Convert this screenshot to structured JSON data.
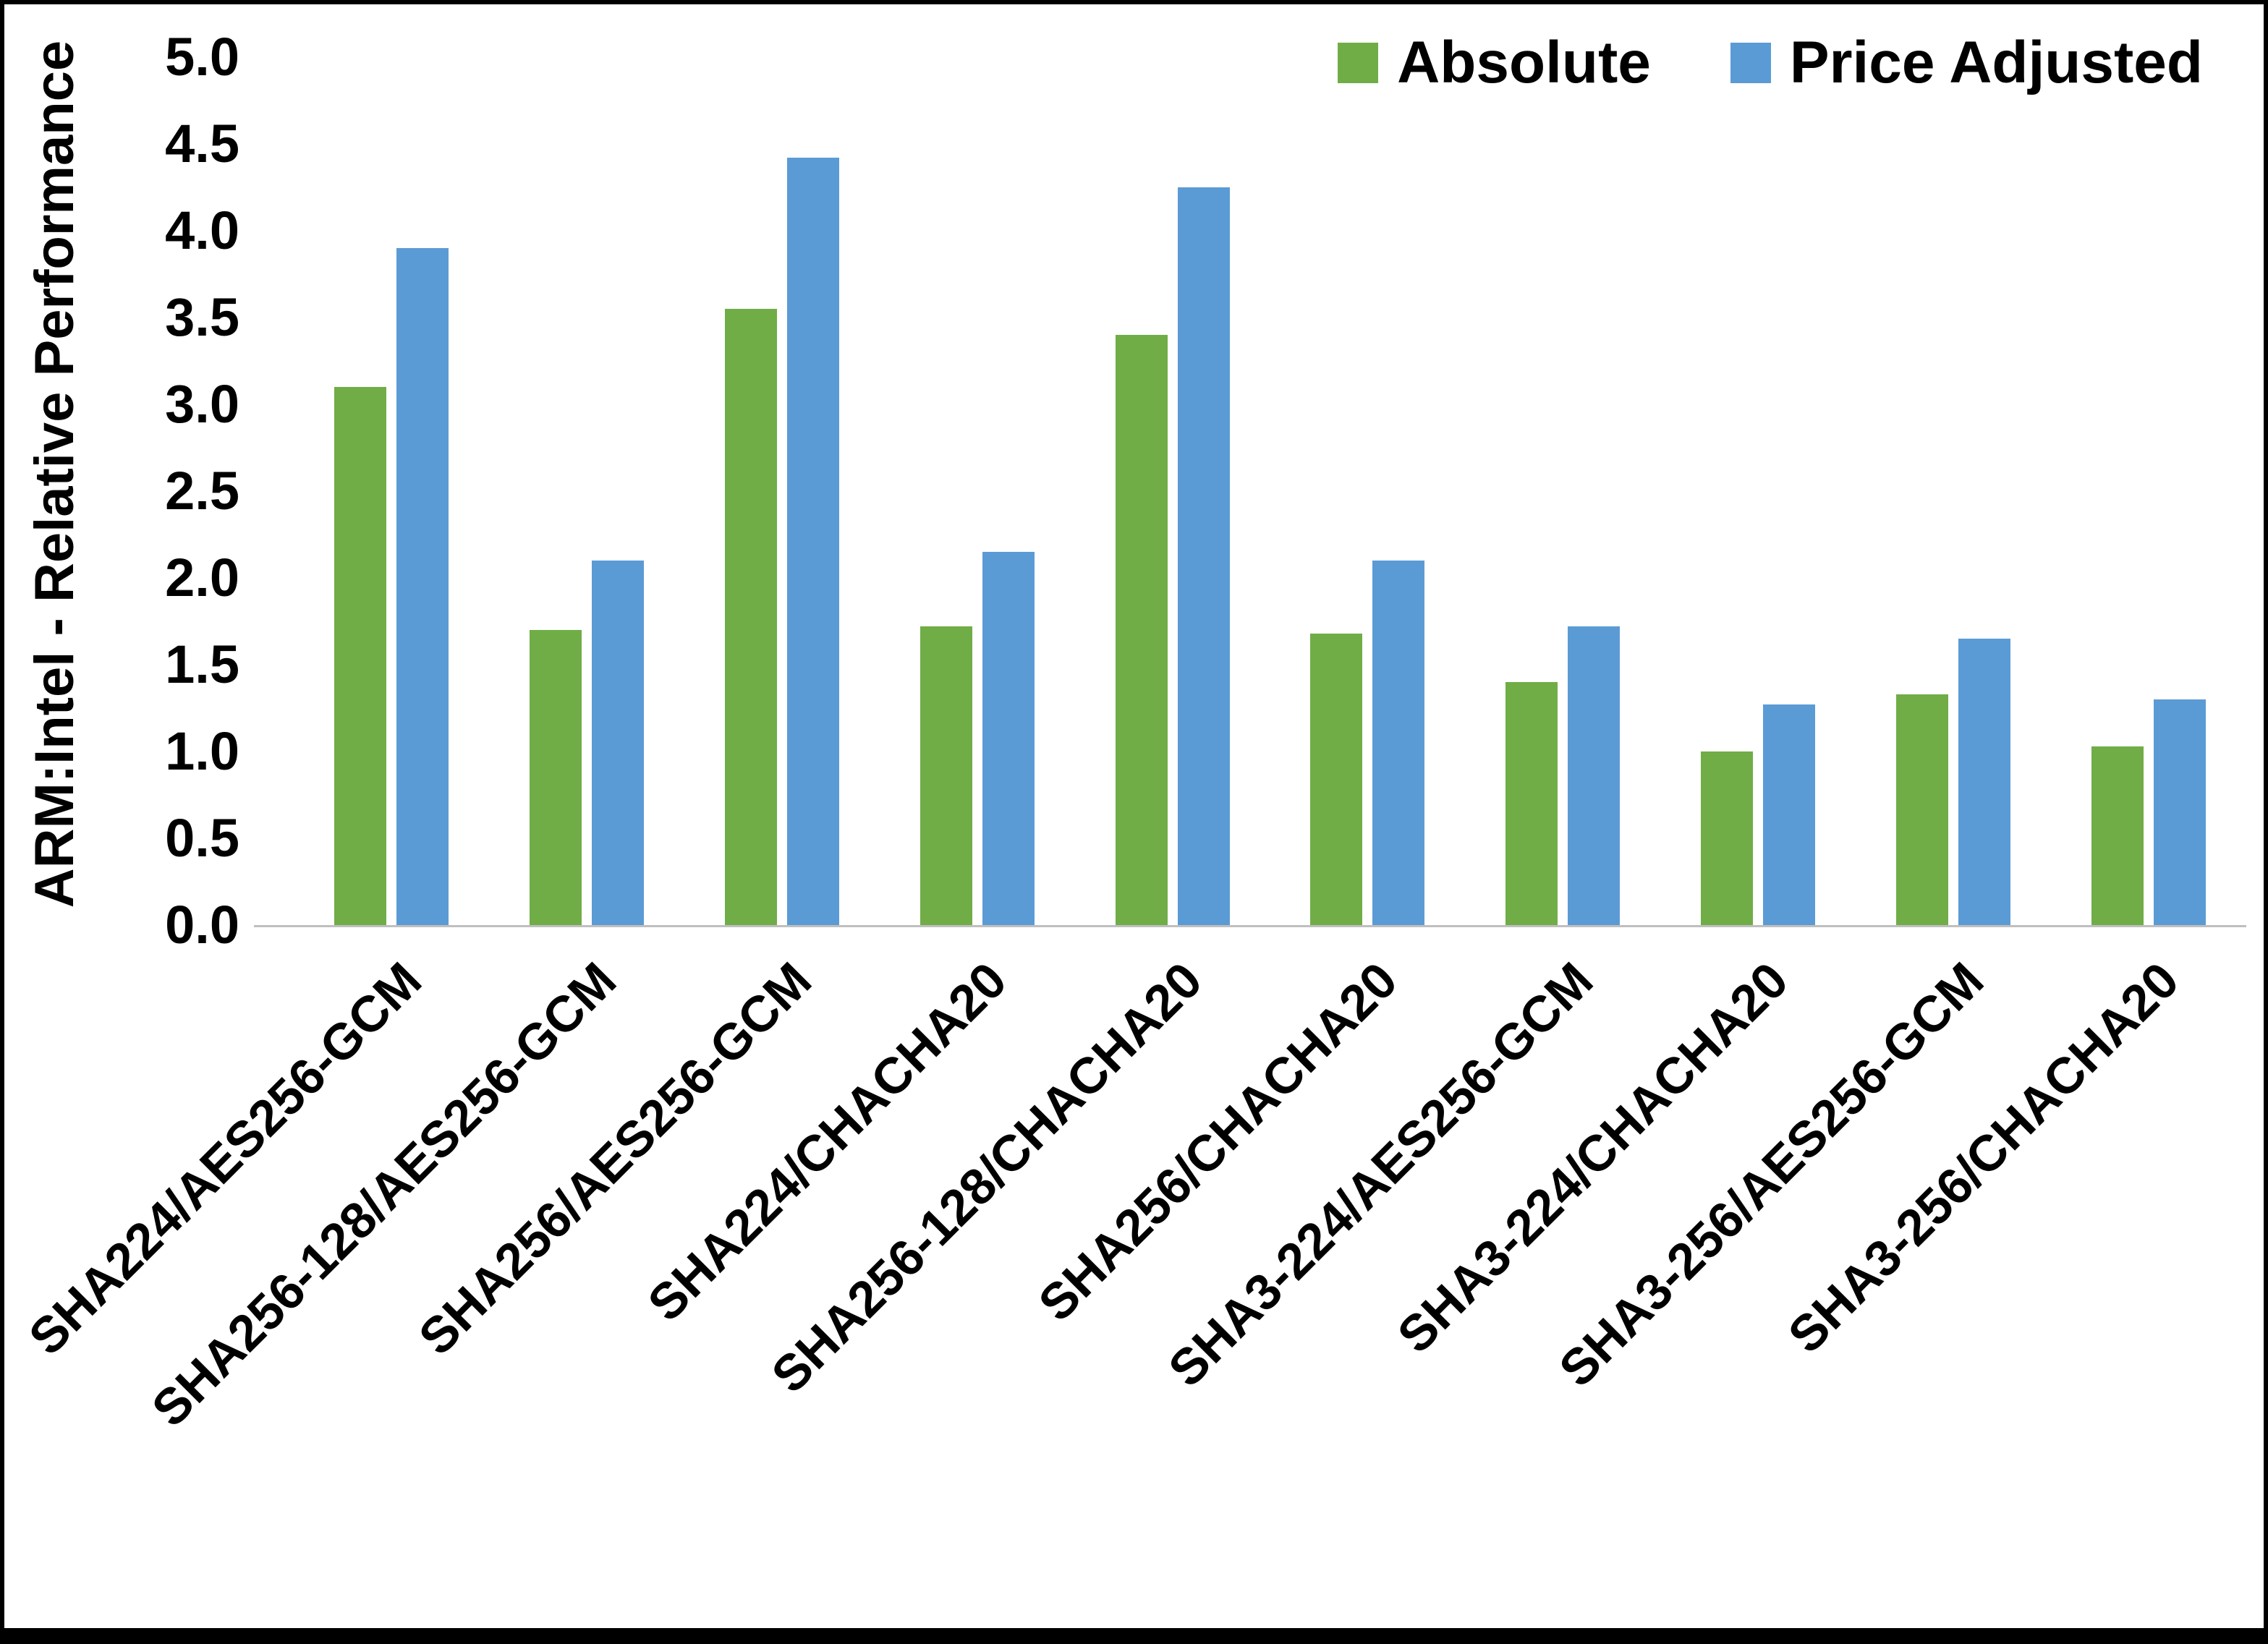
{
  "chart_data": {
    "type": "bar",
    "title": "",
    "xlabel": "",
    "ylabel": "ARM:Intel - Relative Performance",
    "ylim": [
      0,
      5
    ],
    "ytick_step": 0.5,
    "yticks": [
      "5.0",
      "4.5",
      "4.0",
      "3.5",
      "3.0",
      "2.5",
      "2.0",
      "1.5",
      "1.0",
      "0.5",
      "0.0"
    ],
    "grid": false,
    "legend_position": "top-right",
    "categories": [
      "SHA224/AES256-GCM",
      "SHA256-128/AES256-GCM",
      "SHA256/AES256-GCM",
      "SHA224/CHACHA20",
      "SHA256-128/CHACHA20",
      "SHA256/CHACHA20",
      "SHA3-224/AES256-GCM",
      "SHA3-224/CHACHA20",
      "SHA3-256/AES256-GCM",
      "SHA3-256/CHACHA20"
    ],
    "series": [
      {
        "name": "Absolute",
        "color": "#70AD47",
        "values": [
          3.1,
          1.7,
          3.55,
          1.72,
          3.4,
          1.68,
          1.4,
          1.0,
          1.33,
          1.03
        ]
      },
      {
        "name": "Price Adjusted",
        "color": "#5B9BD5",
        "values": [
          3.9,
          2.1,
          4.42,
          2.15,
          4.25,
          2.1,
          1.72,
          1.27,
          1.65,
          1.3
        ]
      }
    ]
  }
}
